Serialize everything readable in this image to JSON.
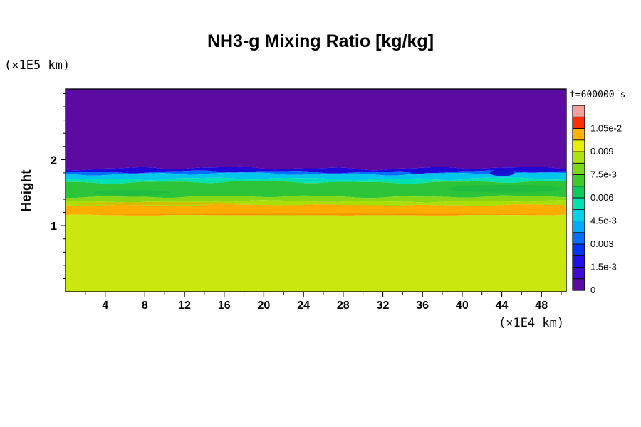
{
  "title": "NH3-g Mixing Ratio [kg/kg]",
  "y_axis": {
    "label": "Height",
    "unit": "(×1E5 km)",
    "ticks": [
      1,
      2
    ],
    "minor_step": 0.2,
    "range": [
      0,
      3.07
    ]
  },
  "x_axis": {
    "unit": "(×1E4 km)",
    "ticks": [
      4,
      8,
      12,
      16,
      20,
      24,
      28,
      32,
      36,
      40,
      44,
      48
    ],
    "minor_step": 2,
    "range": [
      0,
      50.5
    ]
  },
  "colorbar": {
    "label": "t=600000 s",
    "tick_labels": [
      "0",
      "1.5e-3",
      "0.003",
      "4.5e-3",
      "0.006",
      "7.5e-3",
      "0.009",
      "1.05e-2"
    ],
    "levels": [
      0,
      0.00075,
      0.0015,
      0.00225,
      0.003,
      0.00375,
      0.0045,
      0.00525,
      0.006,
      0.00675,
      0.0075,
      0.00825,
      0.009,
      0.00975,
      0.0105,
      0.01125,
      0.012
    ],
    "colors": [
      "#5c0ba2",
      "#3e0ccf",
      "#1f0fe8",
      "#0034f4",
      "#0070ff",
      "#00aaff",
      "#00d2e8",
      "#00e3b0",
      "#10c95e",
      "#3ecb28",
      "#7ed81a",
      "#aee30c",
      "#e8ef00",
      "#ffb000",
      "#ff2e00",
      "#f79f9b"
    ]
  },
  "chart_data": {
    "type": "heatmap",
    "title": "NH3-g Mixing Ratio [kg/kg]",
    "xlabel": "(×1E4 km)",
    "ylabel": "Height (×1E5 km)",
    "time_label": "t=600000 s",
    "x_range": [
      0,
      50.5
    ],
    "y_range": [
      0,
      3.07
    ],
    "description": "Horizontally layered mixing-ratio field: near-zero (purple) above ~1.85e5 km, thin blue/cyan transition near 1.7-1.85, green layer ~1.44-1.66, yellow-green ~1.31-1.44, orange maximum band ~1.16-1.31, uniform yellow-green below 1.16.",
    "bands": [
      {
        "name": "upper-zero",
        "color": "#5c0ba2",
        "top": 3.07,
        "amp": 0,
        "value_approx": "0"
      },
      {
        "name": "dark-blue-layer",
        "color": "#2208d8",
        "top": 1.87,
        "amp": 3,
        "value_approx": "1.5e-3"
      },
      {
        "name": "blue-layer",
        "color": "#0070ff",
        "top": 1.815,
        "amp": 2.5,
        "value_approx": "3e-3"
      },
      {
        "name": "cyan-layer",
        "color": "#00c6ec",
        "top": 1.785,
        "amp": 2.5,
        "value_approx": "4.5e-3"
      },
      {
        "name": "aqua-layer",
        "color": "#00e3b0",
        "top": 1.71,
        "amp": 2.5,
        "value_approx": "5e-3"
      },
      {
        "name": "green-layer",
        "color": "#2cc53a",
        "top": 1.66,
        "amp": 2.5,
        "value_approx": "6e-3"
      },
      {
        "name": "light-green-layer",
        "color": "#86d714",
        "top": 1.44,
        "amp": 2.2,
        "value_approx": "7.5e-3"
      },
      {
        "name": "chartreuse-layer",
        "color": "#aadf08",
        "top": 1.37,
        "amp": 1.8,
        "value_approx": "8.5e-3"
      },
      {
        "name": "orange-layer",
        "color": "#ffad00",
        "top": 1.31,
        "amp": 1.6,
        "value_approx": "1.0e-2"
      },
      {
        "name": "lower-yellow-green",
        "color": "#cbe80e",
        "top": 1.16,
        "amp": 1.4,
        "value_approx": "9e-3"
      }
    ],
    "streaks": [
      {
        "name": "dark-orange-line",
        "x1": 4.2,
        "x2": 48.0,
        "h": 1.175,
        "th": 3,
        "color": "#ef8f00",
        "op": 0.85
      },
      {
        "name": "orange-wisp-left",
        "x1": 0.6,
        "x2": 17.8,
        "h": 1.335,
        "th": 4,
        "color": "#f2a000",
        "op": 0.55
      },
      {
        "name": "orange-wisp-mid",
        "x1": 20.7,
        "x2": 33.6,
        "h": 1.3,
        "th": 3,
        "color": "#f2a000",
        "op": 0.5
      },
      {
        "name": "green-patch-right",
        "x1": 38.6,
        "x2": 50.1,
        "h": 1.56,
        "th": 11,
        "color": "#12b24a",
        "op": 0.45
      },
      {
        "name": "green-patch-left",
        "x1": 2.7,
        "x2": 10.6,
        "h": 1.5,
        "th": 8,
        "color": "#12b24a",
        "op": 0.4
      },
      {
        "name": "cyan-streak",
        "x1": 23.6,
        "x2": 30.7,
        "h": 1.685,
        "th": 5,
        "color": "#00d8c8",
        "op": 0.5
      },
      {
        "name": "blue-dip-right",
        "x1": 42.8,
        "x2": 45.3,
        "h": 1.8,
        "th": 9,
        "color": "#1a06cc",
        "op": 0.9
      },
      {
        "name": "blue-dip-mid",
        "x1": 34.7,
        "x2": 36.4,
        "h": 1.815,
        "th": 6,
        "color": "#1a06cc",
        "op": 0.85
      }
    ]
  }
}
